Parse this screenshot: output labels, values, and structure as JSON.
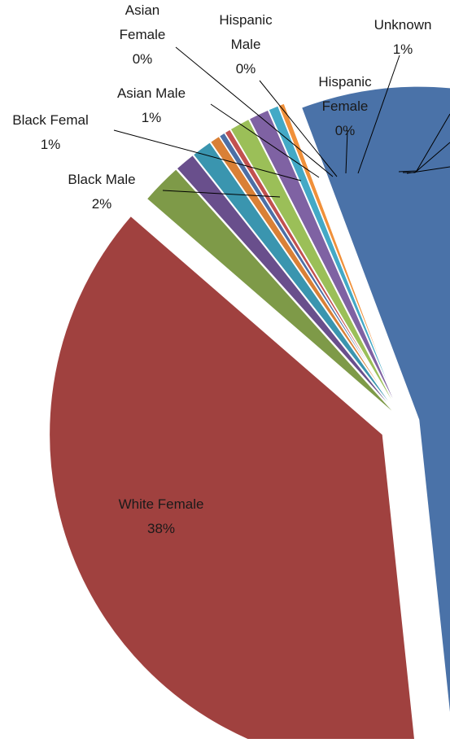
{
  "chart_data": {
    "type": "pie",
    "title": "",
    "exploded": true,
    "slices": [
      {
        "label": "White Female",
        "pct_label": "38%",
        "value": 38,
        "color": "#A0413F"
      },
      {
        "label": "Black Male",
        "pct_label": "2%",
        "value": 2,
        "color": "#7E9A48"
      },
      {
        "label": "Black Femal",
        "pct_label": "1%",
        "value": 1,
        "color": "#694F8C"
      },
      {
        "label": "Asian Male",
        "pct_label": "1%",
        "value": 1,
        "color": "#3A95AF"
      },
      {
        "label": "Asian Female",
        "pct_label": "0%",
        "value": 0.5,
        "color": "#D98036"
      },
      {
        "label": "Hispanic Male",
        "pct_label": "0%",
        "value": 0.3,
        "color": "#4C6FA6"
      },
      {
        "label": "Hispanic Female",
        "pct_label": "0%",
        "value": 0.3,
        "color": "#C2514F"
      },
      {
        "label": "Unknown",
        "pct_label": "1%",
        "value": 1,
        "color": "#9BBF58"
      },
      {
        "label": "",
        "pct_label": "",
        "value": 1,
        "color": "#7F62A3"
      },
      {
        "label": "",
        "pct_label": "",
        "value": 0.5,
        "color": "#43A9C6"
      },
      {
        "label": "",
        "pct_label": "",
        "value": 0.3,
        "color": "#F0903A"
      },
      {
        "label": "",
        "pct_label": "",
        "value": 54,
        "color": "#4A72A8"
      }
    ]
  }
}
